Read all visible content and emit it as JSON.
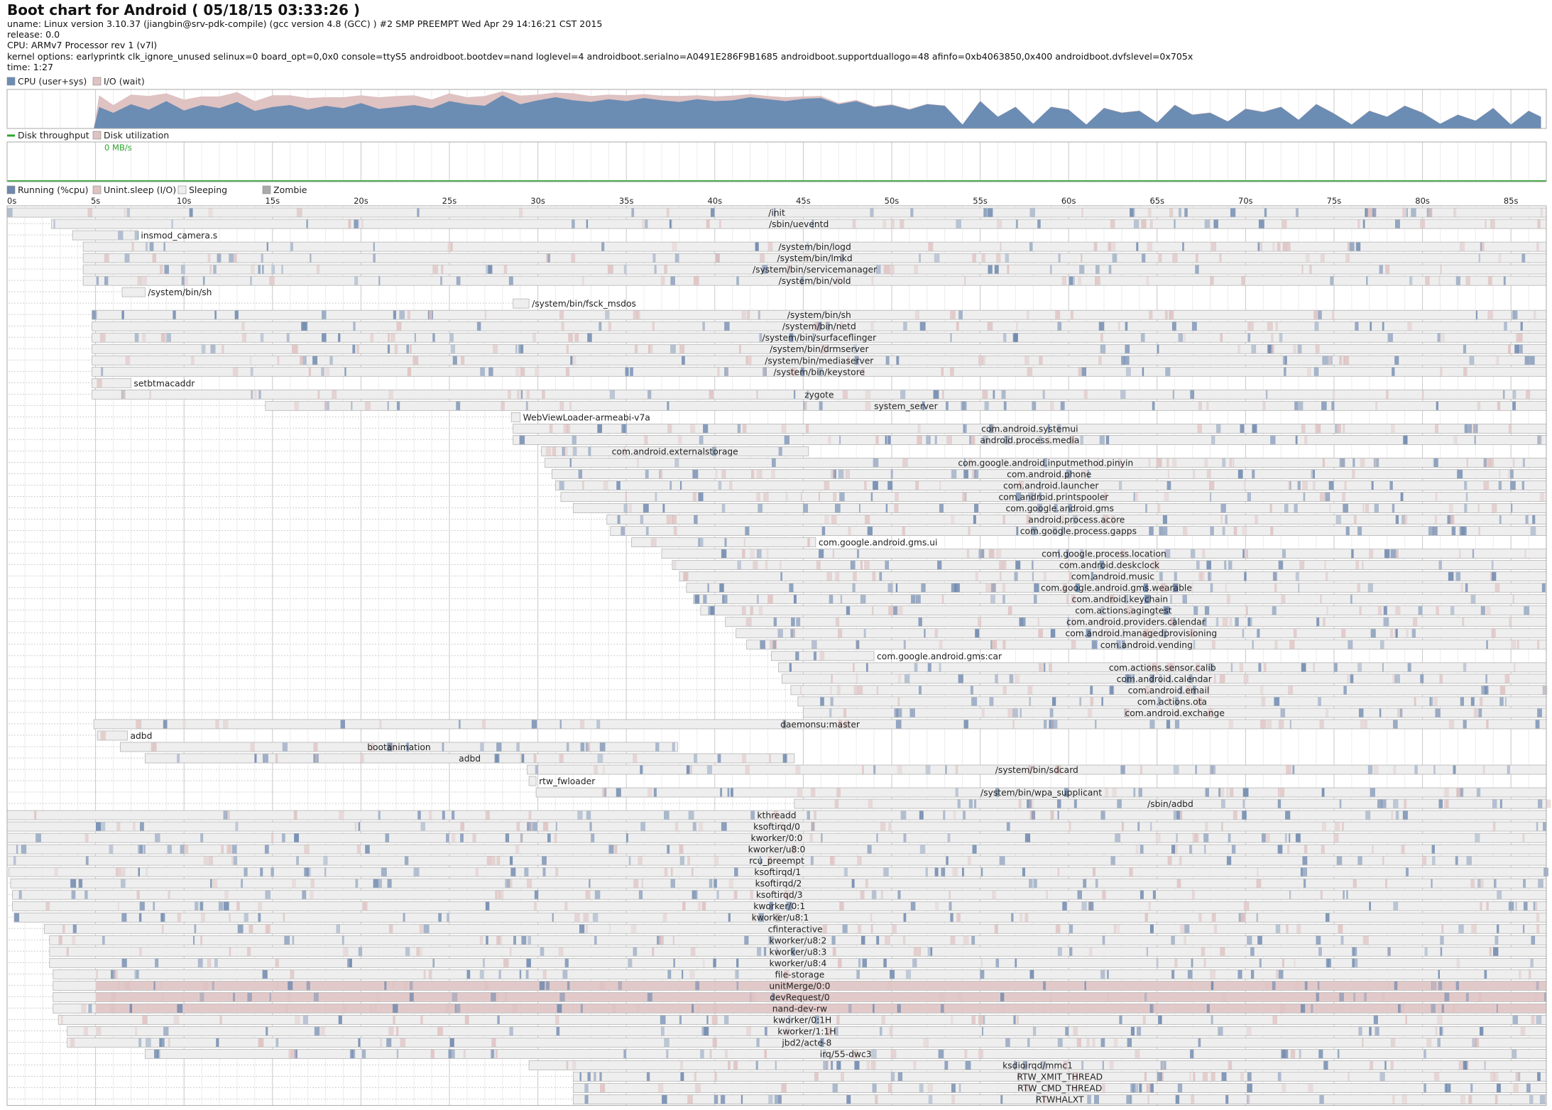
{
  "header": {
    "title": "Boot chart for Android ( 05/18/15 03:33:26 )",
    "uname": "uname: Linux version 3.10.37 (jiangbin@srv-pdk-compile) (gcc version 4.8 (GCC) ) #2 SMP PREEMPT Wed Apr 29 14:16:21 CST 2015",
    "release": "release: 0.0",
    "cpu": "CPU: ARMv7 Processor rev 1 (v7l)",
    "kernel": "kernel options: earlyprintk clk_ignore_unused selinux=0 board_opt=0,0x0 console=ttyS5 androidboot.bootdev=nand loglevel=4 androidboot.serialno=A0491E286F9B1685 androidboot.supportduallogo=48 afinfo=0xb4063850,0x400 androidboot.dvfslevel=0x705x",
    "time": "time: 1:27"
  },
  "colors": {
    "cpu": "#6b8cb3",
    "io": "#dfc2c2",
    "disk": "#2da52d",
    "running": "#6e88ae",
    "uninterruptible": "#dfc2c2",
    "sleeping": "#eeeeee",
    "zombie": "#aaaaaa",
    "grid": "#dddddd",
    "frame": "#aaaaaa"
  },
  "chart_data": [
    {
      "type": "area",
      "name": "cpu-io",
      "legend": [
        "CPU (user+sys)",
        "I/O (wait)"
      ],
      "x_range": [
        0,
        87
      ],
      "ylim": [
        0,
        100
      ],
      "x": [
        0,
        4.9,
        5.2,
        6,
        7,
        8,
        9,
        10,
        11,
        12,
        13,
        14,
        15,
        16,
        17,
        18,
        19,
        20,
        21,
        22,
        23,
        24,
        25,
        26,
        27,
        28,
        29,
        30,
        31,
        32,
        33,
        34,
        35,
        36,
        37,
        38,
        39,
        40,
        41,
        42,
        43,
        44,
        45,
        46,
        47,
        48,
        49,
        50,
        51,
        52,
        53,
        54,
        55,
        56,
        57,
        58,
        59,
        60,
        61,
        62,
        63,
        64,
        65,
        66,
        67,
        68,
        69,
        70,
        71,
        72,
        73,
        74,
        75,
        76,
        77,
        78,
        79,
        80,
        81,
        82,
        83,
        84,
        85,
        86,
        86.7
      ],
      "cpu": [
        0,
        0,
        55,
        40,
        62,
        48,
        70,
        46,
        60,
        52,
        68,
        45,
        55,
        60,
        48,
        58,
        52,
        65,
        50,
        55,
        60,
        52,
        70,
        62,
        58,
        85,
        62,
        72,
        80,
        72,
        68,
        75,
        70,
        78,
        72,
        68,
        75,
        70,
        72,
        80,
        75,
        70,
        76,
        78,
        62,
        70,
        55,
        60,
        48,
        62,
        58,
        10,
        70,
        30,
        55,
        12,
        55,
        48,
        10,
        52,
        40,
        45,
        15,
        60,
        35,
        40,
        18,
        50,
        42,
        55,
        22,
        62,
        38,
        10,
        45,
        30,
        58,
        40,
        12,
        35,
        20,
        52,
        10,
        45,
        30
      ],
      "io": [
        0,
        0,
        30,
        20,
        25,
        35,
        20,
        28,
        22,
        30,
        25,
        25,
        30,
        25,
        30,
        22,
        28,
        20,
        30,
        28,
        25,
        22,
        20,
        18,
        25,
        10,
        22,
        15,
        12,
        18,
        15,
        12,
        15,
        10,
        12,
        15,
        10,
        12,
        12,
        8,
        8,
        10,
        6,
        5,
        3,
        3,
        2,
        2,
        2,
        1,
        1,
        0,
        1,
        0,
        1,
        0,
        1,
        1,
        0,
        1,
        1,
        1,
        0,
        1,
        1,
        1,
        0,
        1,
        1,
        1,
        0,
        1,
        1,
        0,
        1,
        0,
        1,
        1,
        0,
        1,
        0,
        1,
        0,
        1,
        0
      ]
    },
    {
      "type": "line",
      "name": "disk",
      "legend": [
        "Disk throughput",
        "Disk utilization"
      ],
      "max_label": "0 MB/s",
      "x_range": [
        0,
        87
      ],
      "x": [
        0,
        87
      ],
      "throughput": [
        0,
        0
      ]
    },
    {
      "type": "bar",
      "name": "process-timeline",
      "legend": [
        "Running (%cpu)",
        "Unint.sleep (I/O)",
        "Sleeping",
        "Zombie"
      ],
      "x_range": [
        0,
        87
      ],
      "x_ticks": [
        "0s",
        "5s",
        "10s",
        "15s",
        "20s",
        "25s",
        "30s",
        "35s",
        "40s",
        "45s",
        "50s",
        "55s",
        "60s",
        "65s",
        "70s",
        "75s",
        "80s",
        "85s"
      ],
      "processes": [
        {
          "name": "/init",
          "start": 0,
          "end": 87
        },
        {
          "name": "/sbin/ueventd",
          "start": 2.5,
          "end": 87
        },
        {
          "name": "insmod_camera.s",
          "start": 3.7,
          "end": 7.4
        },
        {
          "name": "/system/bin/logd",
          "start": 4.3,
          "end": 87
        },
        {
          "name": "/system/bin/lmkd",
          "start": 4.3,
          "end": 87
        },
        {
          "name": "/system/bin/servicemanager",
          "start": 4.3,
          "end": 87
        },
        {
          "name": "/system/bin/vold",
          "start": 4.3,
          "end": 87
        },
        {
          "name": "/system/bin/sh",
          "start": 6.5,
          "end": 7.8
        },
        {
          "name": "/system/bin/fsck_msdos",
          "start": 28.6,
          "end": 29.5
        },
        {
          "name": "/system/bin/sh",
          "start": 4.8,
          "end": 87
        },
        {
          "name": "/system/bin/netd",
          "start": 4.8,
          "end": 87
        },
        {
          "name": "/system/bin/surfaceflinger",
          "start": 4.8,
          "end": 87
        },
        {
          "name": "/system/bin/drmserver",
          "start": 4.8,
          "end": 87
        },
        {
          "name": "/system/bin/mediaserver",
          "start": 4.8,
          "end": 87
        },
        {
          "name": "/system/bin/keystore",
          "start": 4.8,
          "end": 87
        },
        {
          "name": "setbtmacaddr",
          "start": 4.8,
          "end": 7.0
        },
        {
          "name": "zygote",
          "start": 4.8,
          "end": 87
        },
        {
          "name": "system_server",
          "start": 14.6,
          "end": 87
        },
        {
          "name": "WebViewLoader-armeabi-v7a",
          "start": 28.5,
          "end": 29.0
        },
        {
          "name": "com.android.systemui",
          "start": 28.6,
          "end": 87
        },
        {
          "name": "android.process.media",
          "start": 28.6,
          "end": 87
        },
        {
          "name": "com.android.externalstorage",
          "start": 30.2,
          "end": 45.3
        },
        {
          "name": "com.google.android.inputmethod.pinyin",
          "start": 30.4,
          "end": 87
        },
        {
          "name": "com.android.phone",
          "start": 30.8,
          "end": 87
        },
        {
          "name": "com.android.launcher",
          "start": 31.0,
          "end": 87
        },
        {
          "name": "com.android.printspooler",
          "start": 31.3,
          "end": 87
        },
        {
          "name": "com.google.android.gms",
          "start": 32.0,
          "end": 87
        },
        {
          "name": "android.process.acore",
          "start": 33.9,
          "end": 87
        },
        {
          "name": "com.google.process.gapps",
          "start": 34.1,
          "end": 87
        },
        {
          "name": "com.google.android.gms.ui",
          "start": 35.3,
          "end": 45.7
        },
        {
          "name": "com.google.process.location",
          "start": 37.0,
          "end": 87
        },
        {
          "name": "com.android.deskclock",
          "start": 37.6,
          "end": 87
        },
        {
          "name": "com.android.music",
          "start": 38.0,
          "end": 87
        },
        {
          "name": "com.google.android.gms.wearable",
          "start": 38.4,
          "end": 87
        },
        {
          "name": "com.android.keychain",
          "start": 38.8,
          "end": 87
        },
        {
          "name": "com.actions.agingtest",
          "start": 39.2,
          "end": 87
        },
        {
          "name": "com.android.providers.calendar",
          "start": 40.6,
          "end": 87
        },
        {
          "name": "com.android.managedprovisioning",
          "start": 41.2,
          "end": 87
        },
        {
          "name": "com.android.vending",
          "start": 41.8,
          "end": 87
        },
        {
          "name": "com.google.android.gms:car",
          "start": 43.2,
          "end": 49.0
        },
        {
          "name": "com.actions.sensor.calib",
          "start": 43.6,
          "end": 87
        },
        {
          "name": "com.android.calendar",
          "start": 43.8,
          "end": 87
        },
        {
          "name": "com.android.email",
          "start": 44.3,
          "end": 87
        },
        {
          "name": "com.actions.ota",
          "start": 44.7,
          "end": 87
        },
        {
          "name": "com.android.exchange",
          "start": 45.0,
          "end": 87
        },
        {
          "name": "daemonsu:master",
          "start": 4.9,
          "end": 87
        },
        {
          "name": "adbd",
          "start": 5.1,
          "end": 6.8
        },
        {
          "name": "bootanimation",
          "start": 6.4,
          "end": 37.9
        },
        {
          "name": "adbd",
          "start": 7.8,
          "end": 44.5
        },
        {
          "name": "/system/bin/sdcard",
          "start": 29.4,
          "end": 87
        },
        {
          "name": "rtw_fwloader",
          "start": 29.5,
          "end": 29.9
        },
        {
          "name": "/system/bin/wpa_supplicant",
          "start": 29.9,
          "end": 87
        },
        {
          "name": "/sbin/adbd",
          "start": 44.5,
          "end": 87
        },
        {
          "name": "kthreadd",
          "start": 0,
          "end": 87
        },
        {
          "name": "ksoftirqd/0",
          "start": 0,
          "end": 87
        },
        {
          "name": "kworker/0:0",
          "start": 0,
          "end": 87
        },
        {
          "name": "kworker/u8:0",
          "start": 0,
          "end": 87
        },
        {
          "name": "rcu_preempt",
          "start": 0,
          "end": 87
        },
        {
          "name": "ksoftirqd/1",
          "start": 0.1,
          "end": 87
        },
        {
          "name": "ksoftirqd/2",
          "start": 0.2,
          "end": 87
        },
        {
          "name": "ksoftirqd/3",
          "start": 0.3,
          "end": 87
        },
        {
          "name": "kworker/0:1",
          "start": 0.3,
          "end": 87
        },
        {
          "name": "kworker/u8:1",
          "start": 0.4,
          "end": 87
        },
        {
          "name": "cfinteractive",
          "start": 2.1,
          "end": 87
        },
        {
          "name": "kworker/u8:2",
          "start": 2.4,
          "end": 87
        },
        {
          "name": "kworker/u8:3",
          "start": 2.4,
          "end": 87
        },
        {
          "name": "kworker/u8:4",
          "start": 2.4,
          "end": 87
        },
        {
          "name": "file-storage",
          "start": 2.6,
          "end": 87
        },
        {
          "name": "unitMerge/0:0",
          "start": 2.6,
          "end": 87
        },
        {
          "name": "devRequest/0",
          "start": 2.6,
          "end": 87
        },
        {
          "name": "nand-dev-rw",
          "start": 2.6,
          "end": 87
        },
        {
          "name": "kworker/0:1H",
          "start": 2.9,
          "end": 87
        },
        {
          "name": "kworker/1:1H",
          "start": 3.4,
          "end": 87
        },
        {
          "name": "jbd2/acte-8",
          "start": 3.4,
          "end": 87
        },
        {
          "name": "irq/55-dwc3",
          "start": 7.8,
          "end": 87
        },
        {
          "name": "ksdioirqd/mmc1",
          "start": 29.5,
          "end": 87
        },
        {
          "name": "RTW_XMIT_THREAD",
          "start": 32.0,
          "end": 87
        },
        {
          "name": "RTW_CMD_THREAD",
          "start": 32.0,
          "end": 87
        },
        {
          "name": "RTWHALXT",
          "start": 32.0,
          "end": 87
        }
      ]
    }
  ]
}
